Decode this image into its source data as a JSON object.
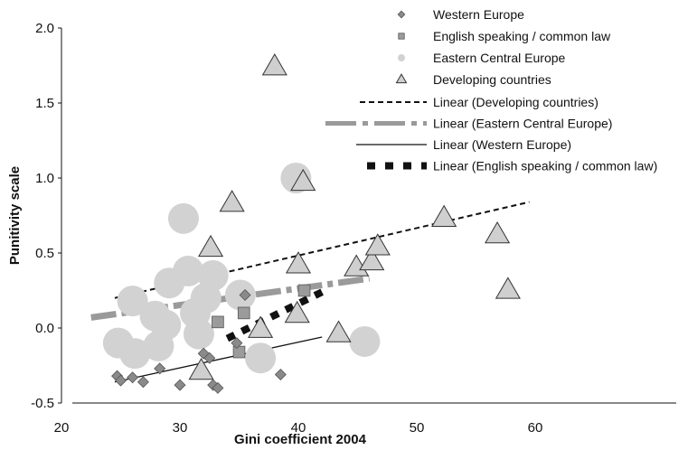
{
  "chart_data": {
    "type": "scatter",
    "xlabel": "Gini coefficient 2004",
    "ylabel": "Punitivity scale",
    "xlim": [
      20,
      65
    ],
    "ylim": [
      -0.5,
      2.0
    ],
    "x_ticks": [
      "20",
      "30",
      "40",
      "50",
      "60"
    ],
    "y_ticks": [
      "-0.5",
      "0.0",
      "0.5",
      "1.0",
      "1.5",
      "2.0"
    ],
    "x_tick_values": [
      20,
      30,
      40,
      50,
      60
    ],
    "y_tick_values": [
      -0.5,
      0.0,
      0.5,
      1.0,
      1.5,
      2.0
    ],
    "legend_position": "top-right",
    "colors": {
      "western": "#8a8a8a",
      "english": "#9b9b9b",
      "eastern": "#d2d2d2",
      "developing": "#cfcfcf",
      "axis": "#111111",
      "trend_developing": "#111111",
      "trend_eastern": "#9a9a9a",
      "trend_western": "#111111",
      "trend_english": "#111111"
    },
    "series": [
      {
        "name": "Western Europe",
        "marker": "diamond",
        "points": [
          [
            24.7,
            -0.32
          ],
          [
            25.0,
            -0.35
          ],
          [
            26.0,
            -0.33
          ],
          [
            26.9,
            -0.36
          ],
          [
            28.3,
            -0.27
          ],
          [
            30.0,
            -0.38
          ],
          [
            32.0,
            -0.17
          ],
          [
            32.5,
            -0.2
          ],
          [
            32.8,
            -0.38
          ],
          [
            33.2,
            -0.4
          ],
          [
            34.8,
            -0.1
          ],
          [
            35.5,
            0.22
          ],
          [
            38.5,
            -0.31
          ]
        ]
      },
      {
        "name": "English speaking / common law",
        "marker": "square",
        "points": [
          [
            33.2,
            0.04
          ],
          [
            35.0,
            -0.16
          ],
          [
            35.4,
            0.1
          ],
          [
            40.5,
            0.25
          ]
        ]
      },
      {
        "name": "Eastern Central Europe",
        "marker": "circle",
        "points": [
          [
            24.8,
            -0.1
          ],
          [
            26.0,
            0.18
          ],
          [
            26.2,
            -0.17
          ],
          [
            27.9,
            0.08
          ],
          [
            28.2,
            -0.12
          ],
          [
            29.1,
            0.3
          ],
          [
            28.8,
            0.02
          ],
          [
            30.3,
            0.73
          ],
          [
            30.7,
            0.38
          ],
          [
            31.3,
            0.1
          ],
          [
            31.6,
            -0.04
          ],
          [
            32.2,
            0.2
          ],
          [
            32.8,
            0.35
          ],
          [
            35.1,
            0.22
          ],
          [
            36.8,
            -0.2
          ],
          [
            39.8,
            1.0
          ],
          [
            45.6,
            -0.09
          ]
        ]
      },
      {
        "name": "Developing countries",
        "marker": "triangle",
        "points": [
          [
            31.8,
            -0.29
          ],
          [
            32.6,
            0.53
          ],
          [
            34.4,
            0.83
          ],
          [
            36.8,
            -0.01
          ],
          [
            38.0,
            1.74
          ],
          [
            39.9,
            0.09
          ],
          [
            40.0,
            0.42
          ],
          [
            40.4,
            0.97
          ],
          [
            43.4,
            -0.04
          ],
          [
            44.9,
            0.4
          ],
          [
            46.2,
            0.44
          ],
          [
            46.7,
            0.54
          ],
          [
            52.3,
            0.73
          ],
          [
            56.8,
            0.62
          ],
          [
            57.7,
            0.25
          ]
        ]
      }
    ],
    "trendlines": [
      {
        "name": "Linear (Developing countries)",
        "style": "dashed-black",
        "x": [
          24.5,
          59.5
        ],
        "y": [
          0.2,
          0.84
        ]
      },
      {
        "name": "Linear (Eastern Central Europe)",
        "style": "thick-gray-dashdot",
        "x": [
          22.5,
          46.0
        ],
        "y": [
          0.07,
          0.33
        ]
      },
      {
        "name": "Linear (Western Europe)",
        "style": "solid-thin-black",
        "x": [
          24.5,
          42.0
        ],
        "y": [
          -0.36,
          -0.06
        ]
      },
      {
        "name": "Linear (English speaking / common law)",
        "style": "thick-black-dotted",
        "x": [
          34.0,
          42.0
        ],
        "y": [
          -0.07,
          0.24
        ]
      }
    ]
  }
}
